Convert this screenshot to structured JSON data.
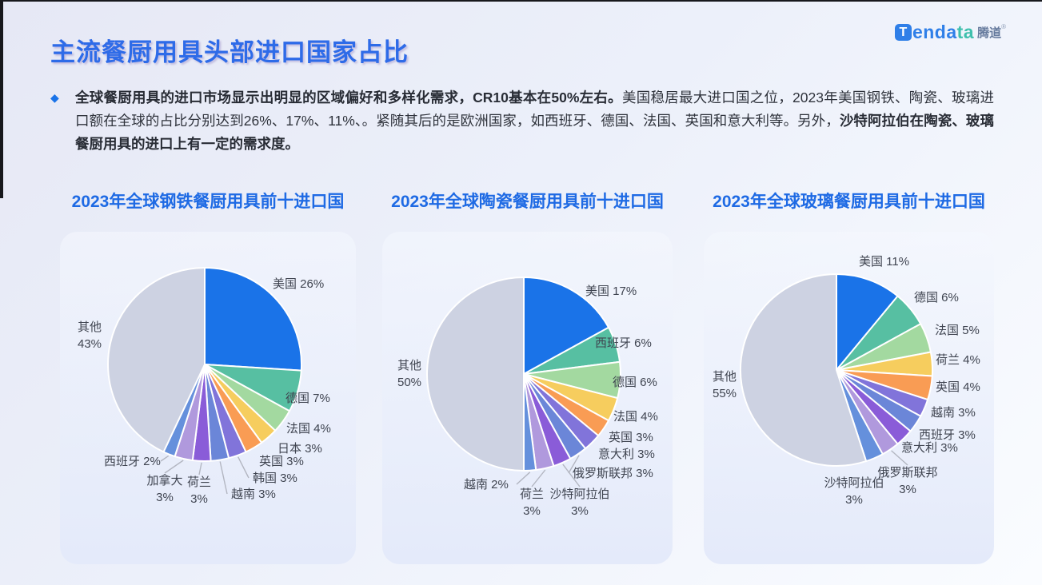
{
  "page": {
    "title": "主流餐厨用具头部进口国家占比"
  },
  "logo": {
    "icon_letter": "T",
    "brand_blue": "enda",
    "brand_teal": "ta",
    "brand_cn": "腾道",
    "reg_mark": "®"
  },
  "intro": {
    "bullet_icon": "◆",
    "bold_lead": "全球餐厨用具的进口市场显示出明显的区域偏好和多样化需求，CR10基本在50%左右。",
    "regular_mid": "美国稳居最大进口国之位，2023年美国钢铁、陶瓷、玻璃进口额在全球的占比分别达到26%、17%、11%、。紧随其后的是欧洲国家，如西班牙、德国、法国、英国和意大利等。另外，",
    "bold_tail": "沙特阿拉伯在陶瓷、玻璃餐厨用具的进口上有一定的需求度。"
  },
  "palette": [
    "#1a73e8",
    "#57bfa2",
    "#a3d9a0",
    "#f6cd5e",
    "#f99c54",
    "#8174da",
    "#6b86d8",
    "#8a5cd8",
    "#b099dd",
    "#6590dc"
  ],
  "other_color": "#cdd2e2",
  "accent_blue": "#2e6be8",
  "chart_data": [
    {
      "type": "pie",
      "title": "2023年全球钢铁餐厨用具前十进口国",
      "unit": "%",
      "legend_position": "none",
      "slices": [
        {
          "label": "美国",
          "value": 26
        },
        {
          "label": "德国",
          "value": 7
        },
        {
          "label": "法国",
          "value": 4
        },
        {
          "label": "日本",
          "value": 3
        },
        {
          "label": "英国",
          "value": 3
        },
        {
          "label": "韩国",
          "value": 3
        },
        {
          "label": "越南",
          "value": 3
        },
        {
          "label": "荷兰",
          "value": 3
        },
        {
          "label": "加拿大",
          "value": 3
        },
        {
          "label": "西班牙",
          "value": 2
        },
        {
          "label": "其他",
          "value": 43
        }
      ]
    },
    {
      "type": "pie",
      "title": "2023年全球陶瓷餐厨用具前十进口国",
      "unit": "%",
      "legend_position": "none",
      "slices": [
        {
          "label": "美国",
          "value": 17
        },
        {
          "label": "西班牙",
          "value": 6
        },
        {
          "label": "德国",
          "value": 6
        },
        {
          "label": "法国",
          "value": 4
        },
        {
          "label": "英国",
          "value": 3
        },
        {
          "label": "意大利",
          "value": 3
        },
        {
          "label": "俄罗斯联邦",
          "value": 3
        },
        {
          "label": "沙特阿拉伯",
          "value": 3
        },
        {
          "label": "荷兰",
          "value": 3
        },
        {
          "label": "越南",
          "value": 2
        },
        {
          "label": "其他",
          "value": 50
        }
      ]
    },
    {
      "type": "pie",
      "title": "2023年全球玻璃餐厨用具前十进口国",
      "unit": "%",
      "legend_position": "none",
      "slices": [
        {
          "label": "美国",
          "value": 11
        },
        {
          "label": "德国",
          "value": 6
        },
        {
          "label": "法国",
          "value": 5
        },
        {
          "label": "荷兰",
          "value": 4
        },
        {
          "label": "英国",
          "value": 4
        },
        {
          "label": "越南",
          "value": 3
        },
        {
          "label": "西班牙",
          "value": 3
        },
        {
          "label": "意大利",
          "value": 3
        },
        {
          "label": "俄罗斯联邦",
          "value": 3
        },
        {
          "label": "沙特阿拉伯",
          "value": 3
        },
        {
          "label": "其他",
          "value": 55
        }
      ]
    }
  ]
}
